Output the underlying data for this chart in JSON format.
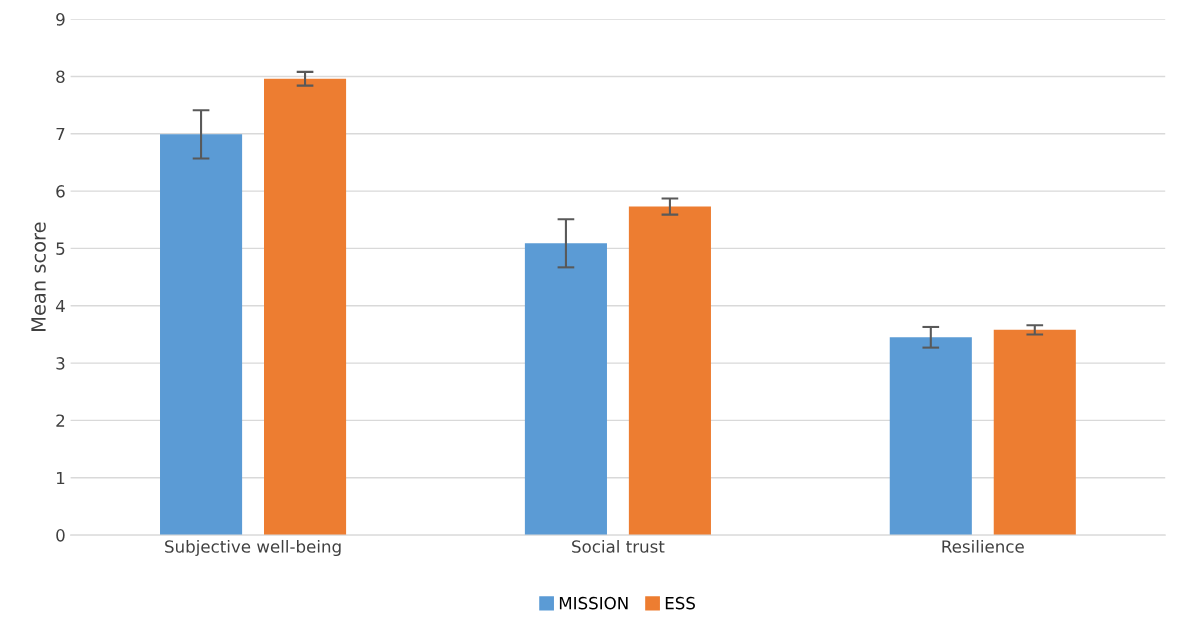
{
  "chart_data": {
    "type": "bar",
    "ylabel": "Mean score",
    "categories": [
      "Subjective well-being",
      "Social trust",
      "Resilience"
    ],
    "series": [
      {
        "name": "MISSION",
        "color": "#5b9bd5",
        "values": [
          6.99,
          5.09,
          3.45
        ],
        "errors": [
          0.42,
          0.42,
          0.18
        ]
      },
      {
        "name": "ESS",
        "color": "#ed7d31",
        "values": [
          7.96,
          5.73,
          3.58
        ],
        "errors": [
          0.12,
          0.14,
          0.08
        ]
      }
    ],
    "ylim": [
      0,
      9
    ],
    "yticks": [
      0,
      1,
      2,
      3,
      4,
      5,
      6,
      7,
      8,
      9
    ],
    "grid": "y",
    "legend": "bottom"
  }
}
